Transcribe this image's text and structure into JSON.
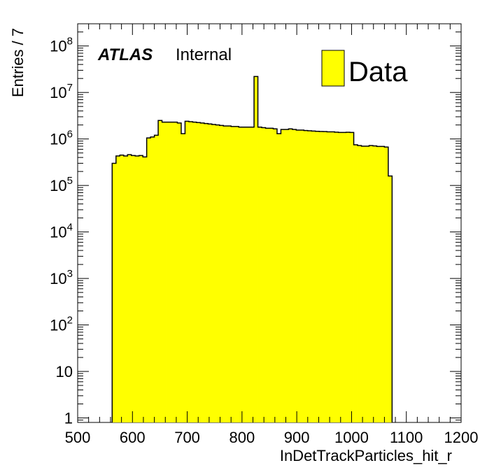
{
  "chart_data": {
    "type": "bar",
    "style": "step-histogram",
    "experiment_label": "ATLAS",
    "status_label": "Internal",
    "xlabel": "InDetTrackParticles_hit_r",
    "ylabel": "Entries / 7",
    "xlim": [
      500,
      1200
    ],
    "ylim": [
      0.8,
      300000000
    ],
    "yscale": "log",
    "grid": false,
    "legend_position": "top-right",
    "x_ticks": [
      500,
      600,
      700,
      800,
      900,
      1000,
      1100,
      1200
    ],
    "y_ticks": [
      {
        "value": 1,
        "base": "1",
        "exp": ""
      },
      {
        "value": 10,
        "base": "10",
        "exp": ""
      },
      {
        "value": 100,
        "base": "10",
        "exp": "2"
      },
      {
        "value": 1000,
        "base": "10",
        "exp": "3"
      },
      {
        "value": 10000,
        "base": "10",
        "exp": "4"
      },
      {
        "value": 100000,
        "base": "10",
        "exp": "5"
      },
      {
        "value": 1000000,
        "base": "10",
        "exp": "6"
      },
      {
        "value": 10000000,
        "base": "10",
        "exp": "7"
      },
      {
        "value": 100000000,
        "base": "10",
        "exp": "8"
      }
    ],
    "bin_width": 7,
    "series": [
      {
        "name": "Data",
        "color": "#ffff00",
        "edge_color": "#000000",
        "bin_edges": [
          563,
          570,
          577,
          584,
          591,
          598,
          605,
          612,
          619,
          626,
          633,
          640,
          647,
          654,
          661,
          668,
          675,
          682,
          689,
          696,
          703,
          710,
          717,
          724,
          731,
          738,
          745,
          752,
          759,
          766,
          773,
          780,
          787,
          794,
          801,
          808,
          815,
          822,
          829,
          836,
          843,
          850,
          857,
          864,
          871,
          878,
          885,
          892,
          899,
          906,
          913,
          920,
          927,
          934,
          941,
          948,
          955,
          962,
          969,
          976,
          983,
          990,
          997,
          1004,
          1011,
          1018,
          1025,
          1032,
          1039,
          1046,
          1053,
          1060,
          1067,
          1074
        ],
        "values": [
          300000,
          430000,
          450000,
          430000,
          460000,
          440000,
          430000,
          440000,
          410000,
          1050000,
          1100000,
          1200000,
          2500000,
          2300000,
          2300000,
          2300000,
          2300000,
          2200000,
          1300000,
          2400000,
          2350000,
          2300000,
          2250000,
          2200000,
          2150000,
          2100000,
          2050000,
          2000000,
          1950000,
          1900000,
          1900000,
          1850000,
          1850000,
          1800000,
          1800000,
          1800000,
          1800000,
          22000000,
          1800000,
          1750000,
          1700000,
          1700000,
          1650000,
          1300000,
          1600000,
          1600000,
          1650000,
          1600000,
          1550000,
          1550000,
          1520000,
          1500000,
          1480000,
          1460000,
          1450000,
          1440000,
          1420000,
          1420000,
          1400000,
          1380000,
          1380000,
          1390000,
          1380000,
          750000,
          720000,
          700000,
          700000,
          720000,
          710000,
          690000,
          690000,
          670000,
          160000
        ]
      }
    ]
  }
}
